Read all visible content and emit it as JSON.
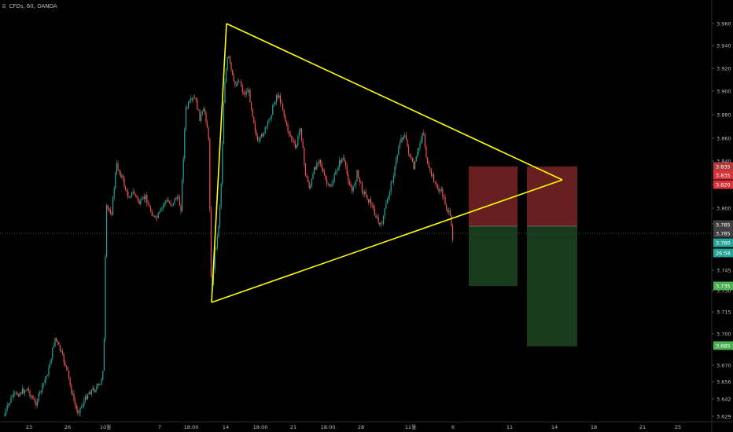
{
  "header": {
    "icon": "bookmark-icon",
    "text": "CFDs, 60, OANDA"
  },
  "chart_data": {
    "type": "candlestick",
    "interval": "60",
    "ylim": [
      3.626,
      3.972
    ],
    "price_ticks": [
      "3.960",
      "3.940",
      "3.920",
      "3.900",
      "3.880",
      "3.860",
      "3.840",
      "3.820",
      "3.800",
      "3.785",
      "3.745",
      "3.730",
      "3.715",
      "3.700",
      "3.670",
      "3.656",
      "3.642",
      "3.629"
    ],
    "time_ticks": [
      "23",
      "26",
      "10월",
      "7",
      "18:00",
      "14",
      "18:00",
      "21",
      "18:00",
      "28",
      "11월",
      "6",
      "11",
      "14",
      "18",
      "21",
      "25"
    ],
    "current_price": "3.780",
    "countdown": "26:58",
    "price_badges": [
      {
        "text": "3.835",
        "color": "#b23c3c"
      },
      {
        "text": "3.835",
        "color": "#d9323a"
      },
      {
        "text": "3.820",
        "color": "#d9323a"
      },
      {
        "text": "3.785",
        "color": "#3f3f3f"
      },
      {
        "text": "3.785",
        "color": "#3f3f3f"
      },
      {
        "text": "3.780",
        "color": "#26a69a"
      },
      {
        "text": "26:58",
        "color": "#26a69a"
      },
      {
        "text": "3.735",
        "color": "#4caf50"
      },
      {
        "text": "3.685",
        "color": "#4caf50"
      }
    ],
    "triangle": {
      "apex_high": 3.96,
      "apex_low": 3.722,
      "apex_right": 3.823,
      "color": "#ffff00"
    },
    "positions": [
      {
        "name": "short-position-1",
        "entry": 3.785,
        "stop": 3.835,
        "target": 3.735
      },
      {
        "name": "short-position-2",
        "entry": 3.785,
        "stop": 3.835,
        "target": 3.685
      }
    ],
    "colors": {
      "up": "#26a69a",
      "down": "#ef5350",
      "grid": "#1c1c1c",
      "axis_text": "#b9b9b9"
    }
  }
}
